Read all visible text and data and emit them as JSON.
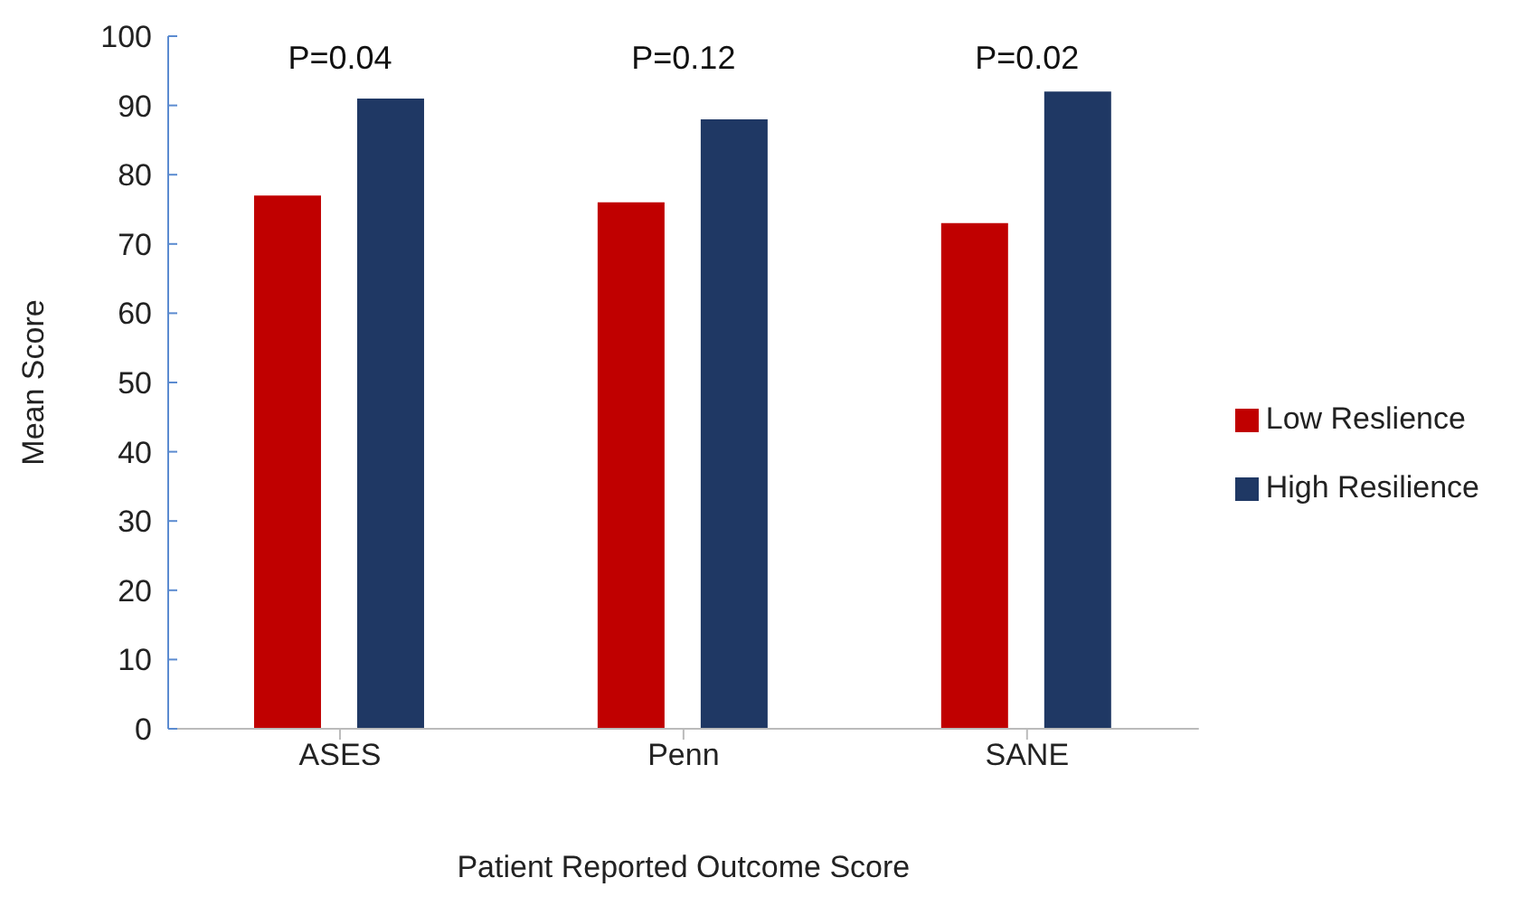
{
  "chart_data": {
    "type": "bar",
    "xlabel": "Patient Reported Outcome Score",
    "ylabel": "Mean Score",
    "categories": [
      "ASES",
      "Penn",
      "SANE"
    ],
    "series": [
      {
        "name": "Low Reslience",
        "color": "#c00000",
        "values": [
          77,
          76,
          73
        ]
      },
      {
        "name": "High Resilience",
        "color": "#1f3864",
        "values": [
          91,
          88,
          92
        ]
      }
    ],
    "ylim": [
      0,
      100
    ],
    "yticks": [
      0,
      10,
      20,
      30,
      40,
      50,
      60,
      70,
      80,
      90,
      100
    ],
    "grid": false,
    "legend": "right",
    "annotations": [
      "P=0.04",
      "P=0.12",
      "P=0.02"
    ]
  }
}
